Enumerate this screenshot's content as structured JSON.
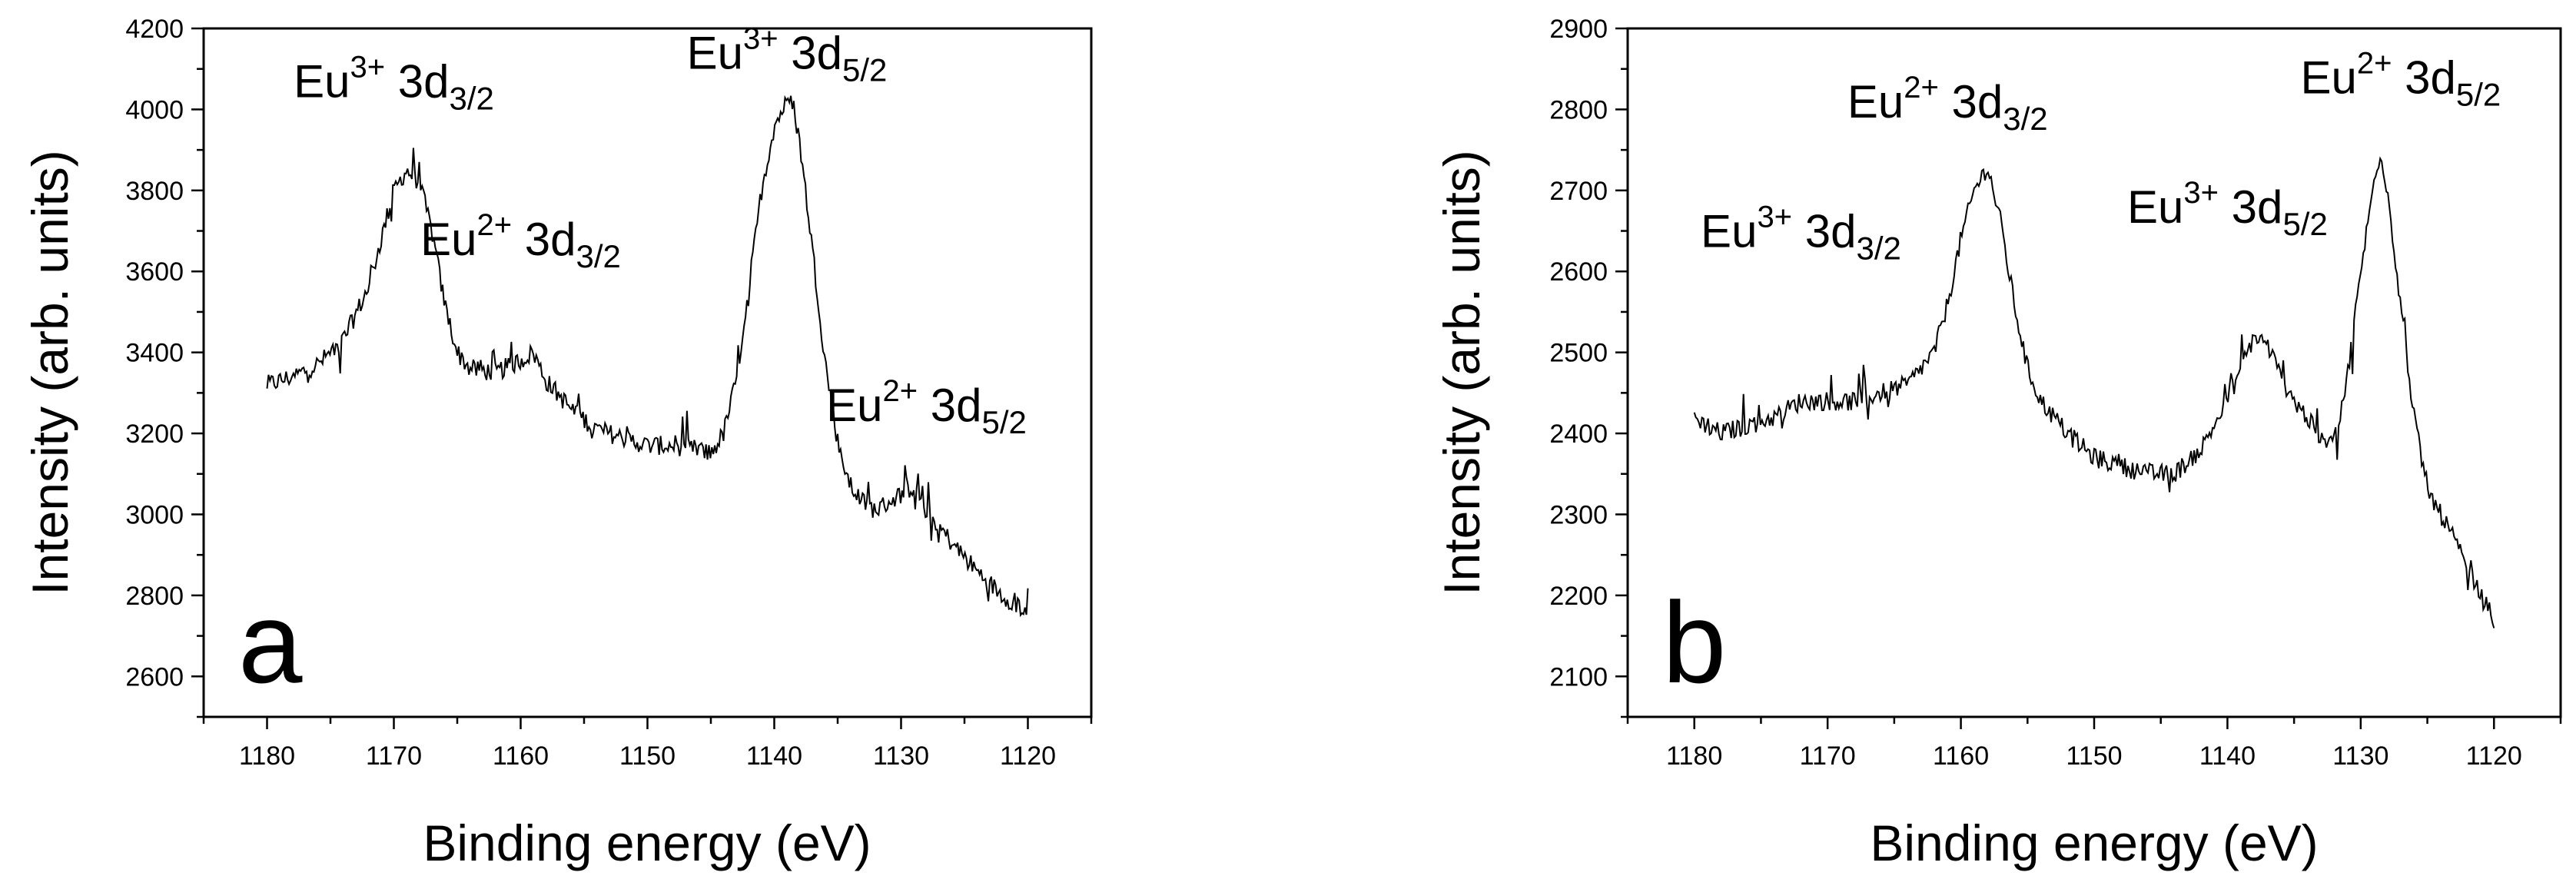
{
  "chart_data": [
    {
      "type": "line",
      "panel_label": "a",
      "xlabel": "Binding energy (eV)",
      "ylabel": "Intensity (arb. units)",
      "xlim": [
        1185,
        1115
      ],
      "ylim": [
        2500,
        4200
      ],
      "x_reversed": true,
      "xticks": [
        1180,
        1170,
        1160,
        1150,
        1140,
        1130,
        1120
      ],
      "yticks": [
        2600,
        2800,
        3000,
        3200,
        3400,
        3600,
        3800,
        4000,
        4200
      ],
      "grid": false,
      "line_color": "#000000",
      "series": [
        {
          "x": [
            1180,
            1178,
            1176,
            1174,
            1172,
            1171,
            1170,
            1169,
            1168,
            1167,
            1166,
            1165,
            1164,
            1162,
            1160,
            1159,
            1158,
            1156,
            1154,
            1152,
            1150,
            1148,
            1146,
            1145,
            1144,
            1143,
            1142,
            1141,
            1140,
            1139,
            1138.5,
            1138,
            1137,
            1136,
            1135,
            1134,
            1133,
            1132,
            1130,
            1129,
            1128,
            1126,
            1124,
            1122,
            1120
          ],
          "y": [
            3320,
            3340,
            3370,
            3430,
            3560,
            3680,
            3800,
            3850,
            3820,
            3700,
            3520,
            3400,
            3360,
            3350,
            3380,
            3400,
            3330,
            3260,
            3210,
            3190,
            3170,
            3170,
            3160,
            3150,
            3200,
            3330,
            3560,
            3800,
            3960,
            4020,
            4010,
            3920,
            3660,
            3380,
            3180,
            3070,
            3030,
            3010,
            3050,
            3070,
            3010,
            2930,
            2860,
            2800,
            2760
          ]
        }
      ],
      "annotations": [
        {
          "ion": "Eu",
          "charge": "3+",
          "orbital": "3d",
          "sub": "3/2",
          "x": 1170,
          "y": 4030
        },
        {
          "ion": "Eu",
          "charge": "2+",
          "orbital": "3d",
          "sub": "3/2",
          "x": 1160,
          "y": 3640
        },
        {
          "ion": "Eu",
          "charge": "3+",
          "orbital": "3d",
          "sub": "5/2",
          "x": 1139,
          "y": 4100
        },
        {
          "ion": "Eu",
          "charge": "2+",
          "orbital": "3d",
          "sub": "5/2",
          "x": 1128,
          "y": 3230
        }
      ]
    },
    {
      "type": "line",
      "panel_label": "b",
      "xlabel": "Binding energy (eV)",
      "ylabel": "Intensity (arb. units)",
      "xlim": [
        1185,
        1115
      ],
      "ylim": [
        2050,
        2900
      ],
      "x_reversed": true,
      "xticks": [
        1180,
        1170,
        1160,
        1150,
        1140,
        1130,
        1120
      ],
      "yticks": [
        2100,
        2200,
        2300,
        2400,
        2500,
        2600,
        2700,
        2800,
        2900
      ],
      "grid": false,
      "line_color": "#000000",
      "series": [
        {
          "x": [
            1180,
            1178,
            1176,
            1174,
            1172,
            1170,
            1168,
            1166,
            1164,
            1162,
            1161,
            1160,
            1159,
            1158,
            1157,
            1156,
            1155,
            1154,
            1152,
            1150,
            1148,
            1146,
            1144,
            1142,
            1140,
            1139,
            1138,
            1137,
            1136,
            1135,
            1134,
            1133,
            1132,
            1131,
            1130,
            1129,
            1128.5,
            1128,
            1127,
            1126,
            1125,
            1124,
            1123,
            1122,
            1121,
            1120
          ],
          "y": [
            2420,
            2400,
            2410,
            2420,
            2440,
            2440,
            2440,
            2450,
            2460,
            2500,
            2560,
            2640,
            2700,
            2730,
            2660,
            2560,
            2480,
            2440,
            2400,
            2370,
            2360,
            2350,
            2350,
            2380,
            2440,
            2480,
            2520,
            2510,
            2470,
            2440,
            2420,
            2390,
            2390,
            2470,
            2600,
            2710,
            2750,
            2700,
            2560,
            2420,
            2330,
            2300,
            2270,
            2230,
            2200,
            2170
          ]
        }
      ],
      "annotations": [
        {
          "ion": "Eu",
          "charge": "3+",
          "orbital": "3d",
          "sub": "3/2",
          "x": 1172,
          "y": 2630
        },
        {
          "ion": "Eu",
          "charge": "2+",
          "orbital": "3d",
          "sub": "3/2",
          "x": 1161,
          "y": 2790
        },
        {
          "ion": "Eu",
          "charge": "3+",
          "orbital": "3d",
          "sub": "5/2",
          "x": 1140,
          "y": 2660
        },
        {
          "ion": "Eu",
          "charge": "2+",
          "orbital": "3d",
          "sub": "5/2",
          "x": 1127,
          "y": 2820
        }
      ]
    }
  ]
}
